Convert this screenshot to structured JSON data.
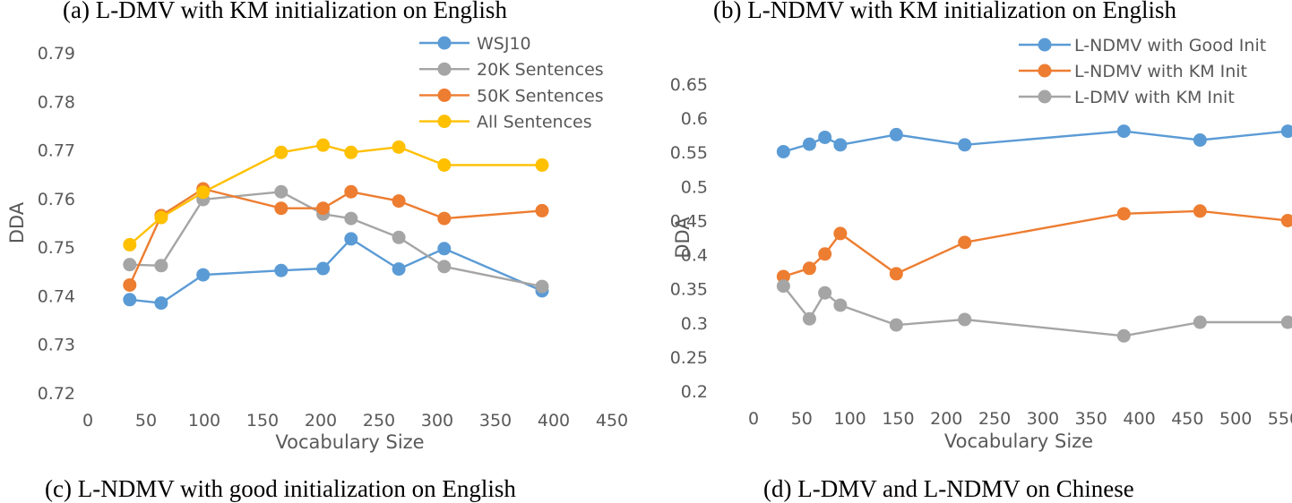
{
  "captions": {
    "a": "(a) L-DMV with KM initialization on English",
    "b": "(b) L-NDMV with KM initialization on English",
    "c": "(c) L-NDMV with good initialization on English",
    "d": "(d) L-DMV and L-NDMV on Chinese"
  },
  "chart_data": [
    {
      "type": "line",
      "title": "",
      "xlabel": "Vocabulary Size",
      "ylabel": "DDA",
      "xlim": [
        0,
        450
      ],
      "ylim": [
        0.72,
        0.79
      ],
      "xticks": [
        0,
        50,
        100,
        150,
        200,
        250,
        300,
        350,
        400,
        450
      ],
      "yticks": [
        0.72,
        0.73,
        0.74,
        0.75,
        0.76,
        0.77,
        0.78,
        0.79
      ],
      "ytick_labels": [
        "0.72",
        "0.73",
        "0.74",
        "0.75",
        "0.76",
        "0.77",
        "0.78",
        "0.79"
      ],
      "grid": false,
      "legend_position": "top-right",
      "x": [
        36,
        63,
        99,
        166,
        202,
        226,
        267,
        306,
        390
      ],
      "series": [
        {
          "name": "WSJ10",
          "color": "#5b9bd5",
          "values": [
            0.7392,
            0.7385,
            0.7443,
            0.7452,
            0.7456,
            0.7517,
            0.7455,
            0.7497,
            0.741
          ]
        },
        {
          "name": "20K Sentences",
          "color": "#a5a5a5",
          "values": [
            0.7464,
            0.7462,
            0.7598,
            0.7614,
            0.7568,
            0.7559,
            0.752,
            0.746,
            0.7419
          ]
        },
        {
          "name": "50K Sentences",
          "color": "#ed7d31",
          "values": [
            0.7422,
            0.7565,
            0.762,
            0.758,
            0.758,
            0.7614,
            0.7595,
            0.7559,
            0.7575
          ]
        },
        {
          "name": "All Sentences",
          "color": "#ffc000",
          "values": [
            0.7505,
            0.7561,
            0.7613,
            0.7695,
            0.771,
            0.7695,
            0.7706,
            0.7669,
            0.7669
          ]
        }
      ]
    },
    {
      "type": "line",
      "title": "",
      "xlabel": "Vocabulary Size",
      "ylabel": "DDA",
      "xlim": [
        0,
        550
      ],
      "ylim": [
        0.2,
        0.65
      ],
      "xticks": [
        0,
        50,
        100,
        150,
        200,
        250,
        300,
        350,
        400,
        450,
        500,
        550
      ],
      "yticks": [
        0.2,
        0.25,
        0.3,
        0.35,
        0.4,
        0.45,
        0.5,
        0.55,
        0.6,
        0.65
      ],
      "ytick_labels": [
        "0.2",
        "0.25",
        "0.3",
        "0.35",
        "0.4",
        "0.45",
        "0.5",
        "0.55",
        "0.6",
        "0.65"
      ],
      "grid": false,
      "legend_position": "top-right",
      "x": [
        31,
        58,
        74,
        90,
        148,
        219,
        384,
        463,
        554
      ],
      "series": [
        {
          "name": "L-NDMV with Good Init",
          "color": "#5b9bd5",
          "values": [
            0.551,
            0.562,
            0.572,
            0.561,
            0.576,
            0.561,
            0.581,
            0.568,
            0.581
          ]
        },
        {
          "name": "L-NDMV with KM Init",
          "color": "#ed7d31",
          "values": [
            0.368,
            0.38,
            0.401,
            0.431,
            0.372,
            0.418,
            0.46,
            0.464,
            0.45
          ]
        },
        {
          "name": "L-DMV with KM Init",
          "color": "#a5a5a5",
          "values": [
            0.354,
            0.306,
            0.344,
            0.326,
            0.297,
            0.305,
            0.281,
            0.301,
            0.301
          ]
        }
      ]
    }
  ]
}
